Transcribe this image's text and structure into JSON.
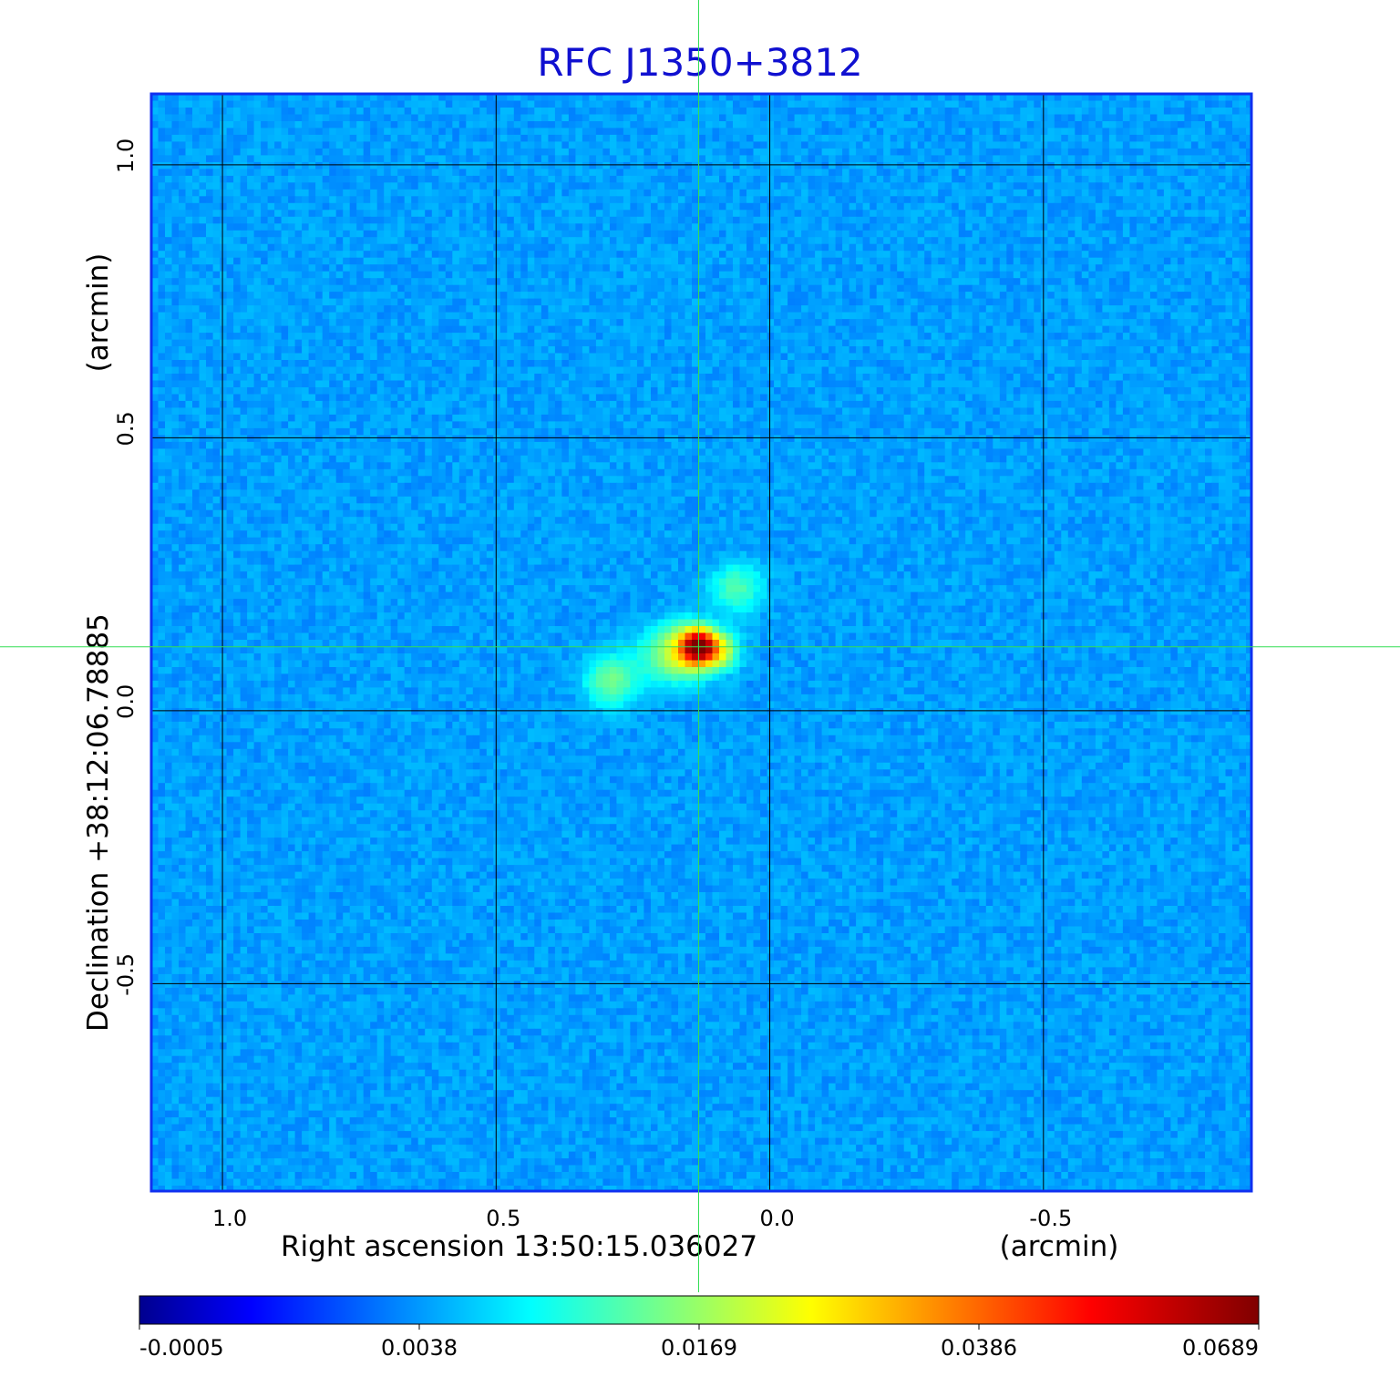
{
  "chart_data": {
    "type": "heatmap",
    "title": "RFC J1350+3812",
    "title_color": "#1010d0",
    "xlabel": "Right ascension  13:50:15.036027",
    "xunit": "(arcmin)",
    "ylabel": "Declination  +38:12:06.78885",
    "yunit": "(arcmin)",
    "xlim": [
      1.13,
      -0.88
    ],
    "ylim": [
      -0.88,
      1.13
    ],
    "x_ticks": [
      1.0,
      0.5,
      0.0,
      -0.5
    ],
    "x_tick_labels": [
      "1.0",
      "0.5",
      "0.0",
      "-0.5"
    ],
    "y_ticks": [
      1.0,
      0.5,
      0.0,
      -0.5
    ],
    "y_tick_labels": [
      "1.0",
      "0.5",
      "0.0",
      "-0.5"
    ],
    "grid": true,
    "crosshair": {
      "x": 0.13,
      "y": 0.117,
      "color": "#33dd55"
    },
    "background_level": 0.0015,
    "sources": [
      {
        "x": 0.13,
        "y": 0.117,
        "peak": 0.0689,
        "sigma": 0.018
      },
      {
        "x": 0.155,
        "y": 0.11,
        "peak": 0.02,
        "sigma": 0.03
      },
      {
        "x": 0.095,
        "y": 0.11,
        "peak": 0.018,
        "sigma": 0.022
      },
      {
        "x": 0.29,
        "y": 0.055,
        "peak": 0.0085,
        "sigma": 0.03
      },
      {
        "x": 0.06,
        "y": 0.225,
        "peak": 0.0065,
        "sigma": 0.03
      },
      {
        "x": 0.21,
        "y": 0.095,
        "peak": 0.004,
        "sigma": 0.035
      }
    ],
    "colorbar": {
      "tick_labels": [
        "-0.0005",
        "0.0038",
        "0.0169",
        "0.0386",
        "0.0689"
      ],
      "colormap": "jet",
      "stops": [
        "#00008f",
        "#0000ff",
        "#00ffff",
        "#ffff00",
        "#ff0000",
        "#800000"
      ]
    }
  }
}
